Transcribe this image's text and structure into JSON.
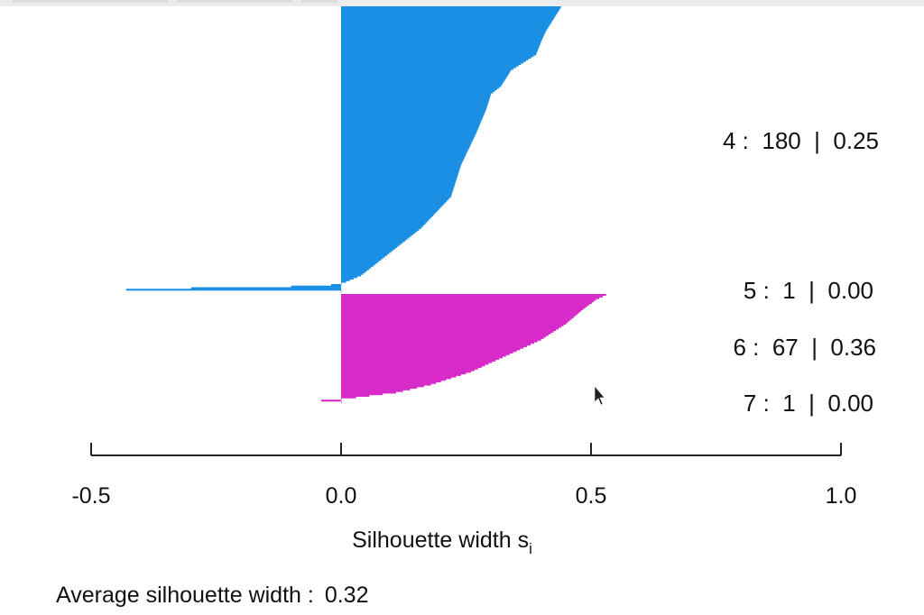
{
  "chart_data": {
    "type": "bar",
    "orientation": "horizontal",
    "xlabel_main": "Silhouette width s",
    "xlabel_subscript": "i",
    "xlim": [
      -0.5,
      1.0
    ],
    "xticks": [
      "-0.5",
      "0.0",
      "0.5",
      "1.0"
    ],
    "xtick_values": [
      -0.5,
      0.0,
      0.5,
      1.0
    ],
    "clusters": [
      {
        "id": 4,
        "size": 180,
        "avg_width": 0.25,
        "label": "4 :  180  |  0.25",
        "color": "#1a8fe3",
        "profile": [
          [
            0,
            0.44
          ],
          [
            5,
            0.43
          ],
          [
            15,
            0.41
          ],
          [
            22,
            0.4
          ],
          [
            30,
            0.39
          ],
          [
            40,
            0.34
          ],
          [
            50,
            0.32
          ],
          [
            55,
            0.3
          ],
          [
            65,
            0.29
          ],
          [
            80,
            0.27
          ],
          [
            100,
            0.24
          ],
          [
            120,
            0.22
          ],
          [
            140,
            0.16
          ],
          [
            150,
            0.12
          ],
          [
            160,
            0.08
          ],
          [
            170,
            0.04
          ],
          [
            174,
            0.01
          ],
          [
            175,
            0.0
          ],
          [
            176,
            -0.02
          ],
          [
            177,
            -0.1
          ],
          [
            178,
            -0.3
          ],
          [
            180,
            -0.56
          ]
        ]
      },
      {
        "id": 5,
        "size": 1,
        "avg_width": 0.0,
        "label": "5 :  1  |  0.00",
        "color": "#1a8fe3",
        "profile": [
          [
            0,
            0.0
          ],
          [
            1,
            0.0
          ]
        ]
      },
      {
        "id": 6,
        "size": 67,
        "avg_width": 0.36,
        "label": "6 :  67  |  0.36",
        "color": "#d72ac8",
        "profile": [
          [
            0,
            0.53
          ],
          [
            3,
            0.51
          ],
          [
            10,
            0.48
          ],
          [
            18,
            0.45
          ],
          [
            28,
            0.4
          ],
          [
            38,
            0.33
          ],
          [
            48,
            0.26
          ],
          [
            56,
            0.18
          ],
          [
            61,
            0.11
          ],
          [
            64,
            0.03
          ],
          [
            65,
            0.0
          ],
          [
            66,
            -0.04
          ],
          [
            67,
            -0.13
          ]
        ]
      },
      {
        "id": 7,
        "size": 1,
        "avg_width": 0.0,
        "label": "7 :  1  |  0.00",
        "color": "#d72ac8",
        "profile": [
          [
            0,
            0.0
          ],
          [
            1,
            0.0
          ]
        ]
      }
    ],
    "average_label": "Average silhouette width :",
    "average_value": "0.32"
  }
}
